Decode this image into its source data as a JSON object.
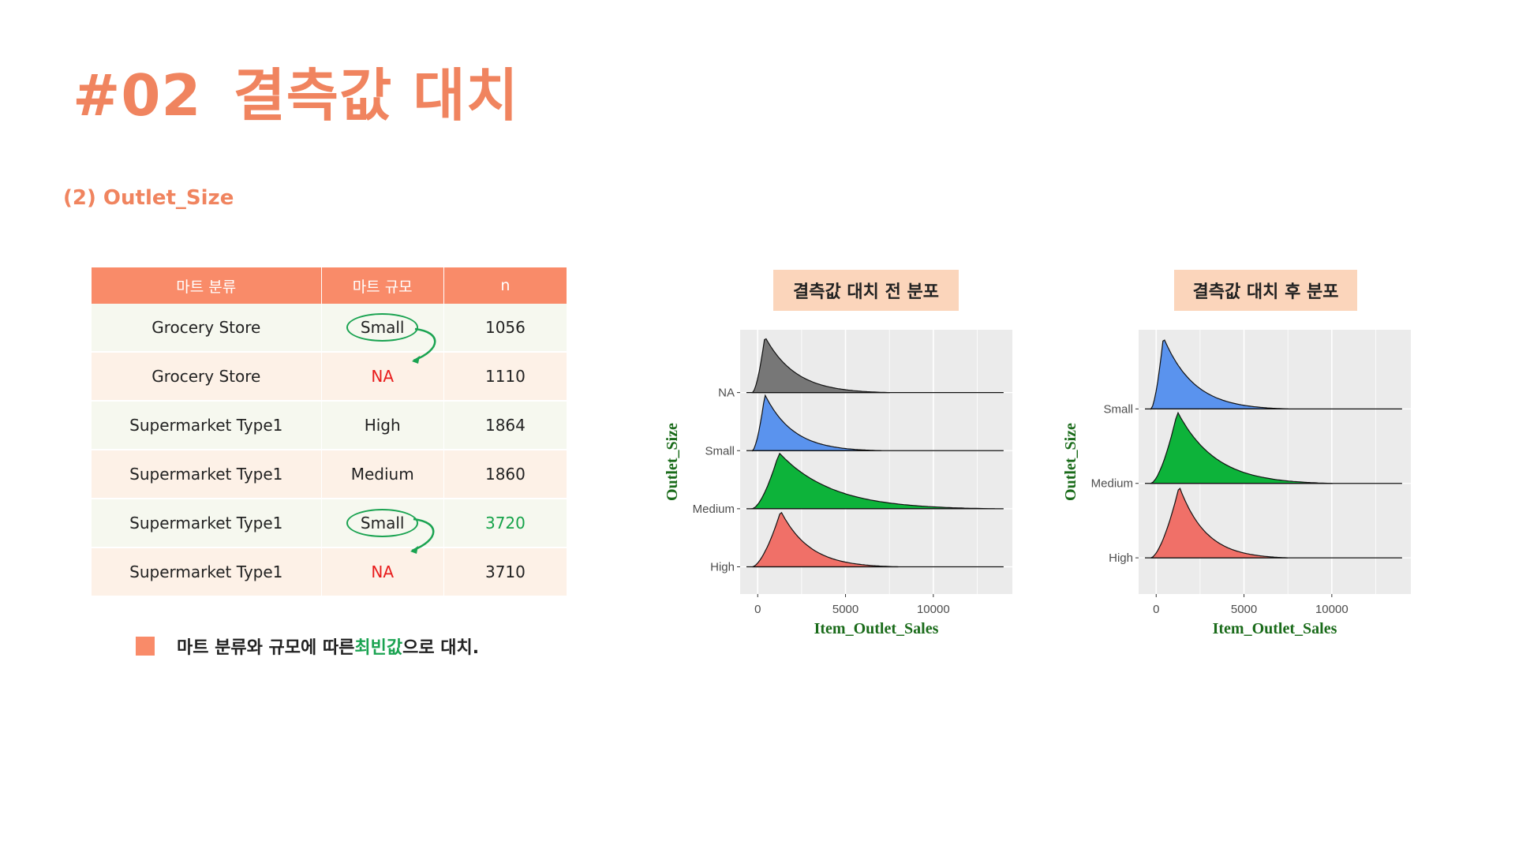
{
  "title": {
    "number": "#02",
    "text": "결측값 대치"
  },
  "subtitle": "(2) Outlet_Size",
  "table": {
    "headers": [
      "마트 분류",
      "마트 규모",
      "n"
    ],
    "rows": [
      {
        "type": "Grocery Store",
        "size": "Small",
        "n": "1056"
      },
      {
        "type": "Grocery Store",
        "size": "NA",
        "n": "1110"
      },
      {
        "type": "Supermarket Type1",
        "size": "High",
        "n": "1864"
      },
      {
        "type": "Supermarket Type1",
        "size": "Medium",
        "n": "1860"
      },
      {
        "type": "Supermarket Type1",
        "size": "Small",
        "n": "3720"
      },
      {
        "type": "Supermarket Type1",
        "size": "NA",
        "n": "3710"
      }
    ]
  },
  "note": {
    "before": "마트 분류와 규모에 따른 ",
    "highlight": "최빈값",
    "after": "으로 대치."
  },
  "chart_data": [
    {
      "type": "area",
      "title": "결측값 대치 전 분포",
      "xlabel": "Item_Outlet_Sales",
      "ylabel": "Outlet_Size",
      "xticks": [
        "0",
        "5000",
        "10000"
      ],
      "xlim": [
        -1000,
        14500
      ],
      "series": [
        {
          "name": "NA",
          "color": "#777777",
          "peak_x": 400,
          "tail_x": 7500
        },
        {
          "name": "Small",
          "color": "#5a93ee",
          "peak_x": 400,
          "tail_x": 7000
        },
        {
          "name": "Medium",
          "color": "#0db33a",
          "peak_x": 1200,
          "tail_x": 13500
        },
        {
          "name": "High",
          "color": "#f07068",
          "peak_x": 1300,
          "tail_x": 8000
        }
      ]
    },
    {
      "type": "area",
      "title": "결측값 대치 후 분포",
      "xlabel": "Item_Outlet_Sales",
      "ylabel": "Outlet_Size",
      "xticks": [
        "0",
        "5000",
        "10000"
      ],
      "xlim": [
        -1000,
        14500
      ],
      "series": [
        {
          "name": "Small",
          "color": "#5a93ee",
          "peak_x": 400,
          "tail_x": 7500
        },
        {
          "name": "Medium",
          "color": "#0db33a",
          "peak_x": 1200,
          "tail_x": 10000
        },
        {
          "name": "High",
          "color": "#f07068",
          "peak_x": 1300,
          "tail_x": 7500
        }
      ]
    }
  ]
}
